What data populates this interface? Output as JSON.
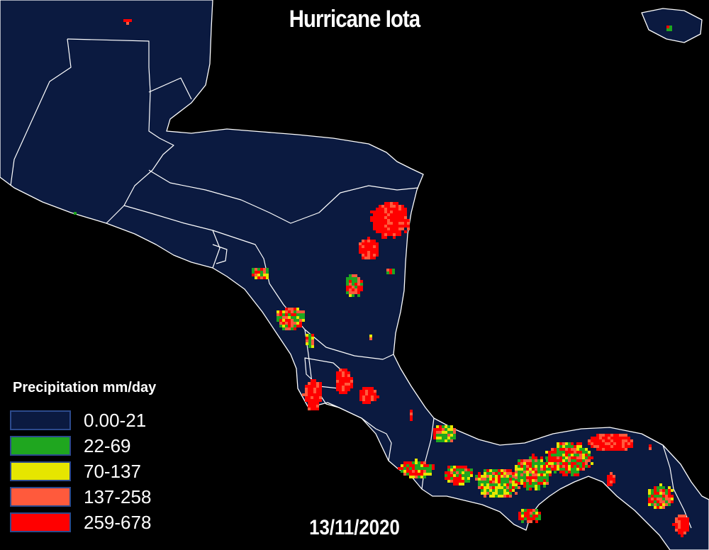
{
  "title": "Hurricane Iota",
  "date": "13/11/2020",
  "legend": {
    "title": "Precipitation mm/day",
    "items": [
      {
        "label": "0.00-21",
        "color": "#0b1a40"
      },
      {
        "label": "22-69",
        "color": "#1fa61f"
      },
      {
        "label": "70-137",
        "color": "#e6e600"
      },
      {
        "label": "137-258",
        "color": "#ff5a3c"
      },
      {
        "label": "259-678",
        "color": "#ff0000"
      }
    ]
  },
  "colors": {
    "land": "#0b1a40",
    "ocean": "#000000",
    "border": "#ffffff",
    "text": "#ffffff"
  }
}
